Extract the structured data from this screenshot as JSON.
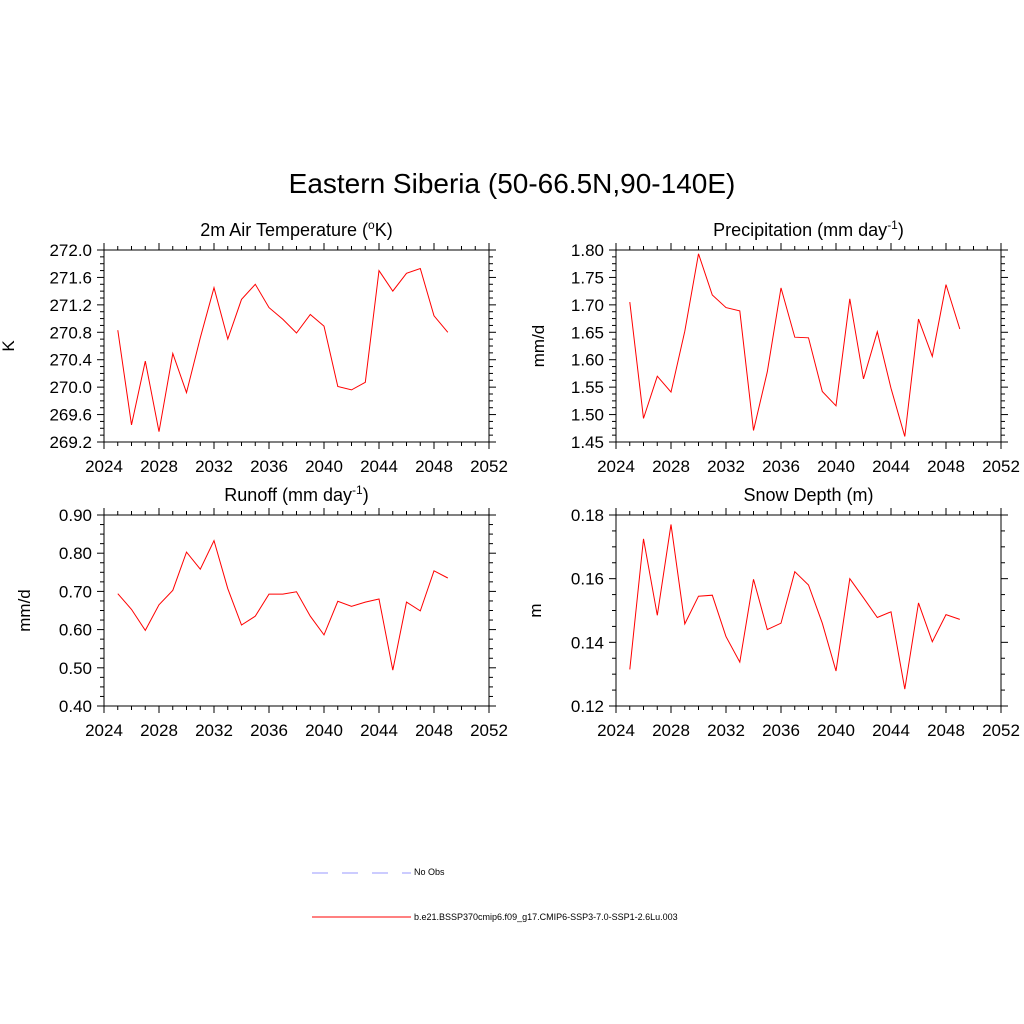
{
  "title": "Eastern Siberia (50-66.5N,90-140E)",
  "chart_data": [
    {
      "type": "line",
      "title_main": "2m Air Temperature (",
      "title_sup": "o",
      "title_tail": "K)",
      "ylabel": "K",
      "xlim": [
        2024,
        2052
      ],
      "ylim": [
        269.2,
        272.0
      ],
      "xticks": [
        2024,
        2028,
        2032,
        2036,
        2040,
        2044,
        2048,
        2052
      ],
      "yticks": [
        "269.2",
        "269.6",
        "270.0",
        "270.4",
        "270.8",
        "271.2",
        "271.6",
        "272.0"
      ],
      "series": [
        {
          "color": "#ff0000",
          "x": [
            2025,
            2026,
            2027,
            2028,
            2029,
            2030,
            2031,
            2032,
            2033,
            2034,
            2035,
            2036,
            2037,
            2038,
            2039,
            2040,
            2041,
            2042,
            2043,
            2044,
            2045,
            2046,
            2047,
            2048,
            2049
          ],
          "y": [
            270.83,
            269.45,
            270.38,
            269.35,
            270.49,
            269.92,
            270.72,
            271.45,
            270.7,
            271.28,
            271.5,
            271.16,
            270.99,
            270.79,
            271.06,
            270.89,
            270.01,
            269.96,
            270.07,
            271.7,
            271.4,
            271.66,
            271.73,
            271.04,
            270.8
          ]
        }
      ]
    },
    {
      "type": "line",
      "title_main": "Precipitation (mm day",
      "title_sup": "-1",
      "title_tail": ")",
      "ylabel": "mm/d",
      "xlim": [
        2024,
        2052
      ],
      "ylim": [
        1.45,
        1.8
      ],
      "xticks": [
        2024,
        2028,
        2032,
        2036,
        2040,
        2044,
        2048,
        2052
      ],
      "yticks": [
        "1.45",
        "1.50",
        "1.55",
        "1.60",
        "1.65",
        "1.70",
        "1.75",
        "1.80"
      ],
      "series": [
        {
          "color": "#ff0000",
          "x": [
            2025,
            2026,
            2027,
            2028,
            2029,
            2030,
            2031,
            2032,
            2033,
            2034,
            2035,
            2036,
            2037,
            2038,
            2039,
            2040,
            2041,
            2042,
            2043,
            2044,
            2045,
            2046,
            2047,
            2048,
            2049
          ],
          "y": [
            1.705,
            1.493,
            1.57,
            1.541,
            1.652,
            1.793,
            1.718,
            1.695,
            1.689,
            1.471,
            1.578,
            1.731,
            1.641,
            1.64,
            1.542,
            1.516,
            1.711,
            1.565,
            1.651,
            1.548,
            1.46,
            1.674,
            1.606,
            1.737,
            1.656
          ]
        }
      ]
    },
    {
      "type": "line",
      "title_main": "Runoff (mm day",
      "title_sup": "-1",
      "title_tail": ")",
      "ylabel": "mm/d",
      "xlim": [
        2024,
        2052
      ],
      "ylim": [
        0.4,
        0.9
      ],
      "xticks": [
        2024,
        2028,
        2032,
        2036,
        2040,
        2044,
        2048,
        2052
      ],
      "yticks": [
        "0.40",
        "0.50",
        "0.60",
        "0.70",
        "0.80",
        "0.90"
      ],
      "series": [
        {
          "color": "#ff0000",
          "x": [
            2025,
            2026,
            2027,
            2028,
            2029,
            2030,
            2031,
            2032,
            2033,
            2034,
            2035,
            2036,
            2037,
            2038,
            2039,
            2040,
            2041,
            2042,
            2043,
            2044,
            2045,
            2046,
            2047,
            2048,
            2049
          ],
          "y": [
            0.694,
            0.653,
            0.598,
            0.665,
            0.703,
            0.803,
            0.758,
            0.833,
            0.707,
            0.612,
            0.635,
            0.693,
            0.693,
            0.699,
            0.635,
            0.586,
            0.674,
            0.661,
            0.672,
            0.68,
            0.494,
            0.672,
            0.649,
            0.754,
            0.735
          ]
        }
      ]
    },
    {
      "type": "line",
      "title_main": "Snow Depth (m)",
      "title_sup": "",
      "title_tail": "",
      "ylabel": "m",
      "xlim": [
        2024,
        2052
      ],
      "ylim": [
        0.12,
        0.18
      ],
      "xticks": [
        2024,
        2028,
        2032,
        2036,
        2040,
        2044,
        2048,
        2052
      ],
      "yticks": [
        "0.12",
        "0.14",
        "0.16",
        "0.18"
      ],
      "series": [
        {
          "color": "#ff0000",
          "x": [
            2025,
            2026,
            2027,
            2028,
            2029,
            2030,
            2031,
            2032,
            2033,
            2034,
            2035,
            2036,
            2037,
            2038,
            2039,
            2040,
            2041,
            2042,
            2043,
            2044,
            2045,
            2046,
            2047,
            2048,
            2049
          ],
          "y": [
            0.1315,
            0.1725,
            0.1485,
            0.177,
            0.1458,
            0.1545,
            0.1548,
            0.1418,
            0.1338,
            0.1598,
            0.144,
            0.146,
            0.1622,
            0.158,
            0.146,
            0.131,
            0.16,
            0.154,
            0.1478,
            0.1496,
            0.1253,
            0.1524,
            0.1402,
            0.1487,
            0.1472
          ]
        }
      ]
    }
  ],
  "legend": [
    {
      "label": "No Obs",
      "color": "#9999ff",
      "dash": true
    },
    {
      "label": "b.e21.BSSP370cmip6.f09_g17.CMIP6-SSP3-7.0-SSP1-2.6Lu.003",
      "color": "#ff0000",
      "dash": false
    }
  ]
}
